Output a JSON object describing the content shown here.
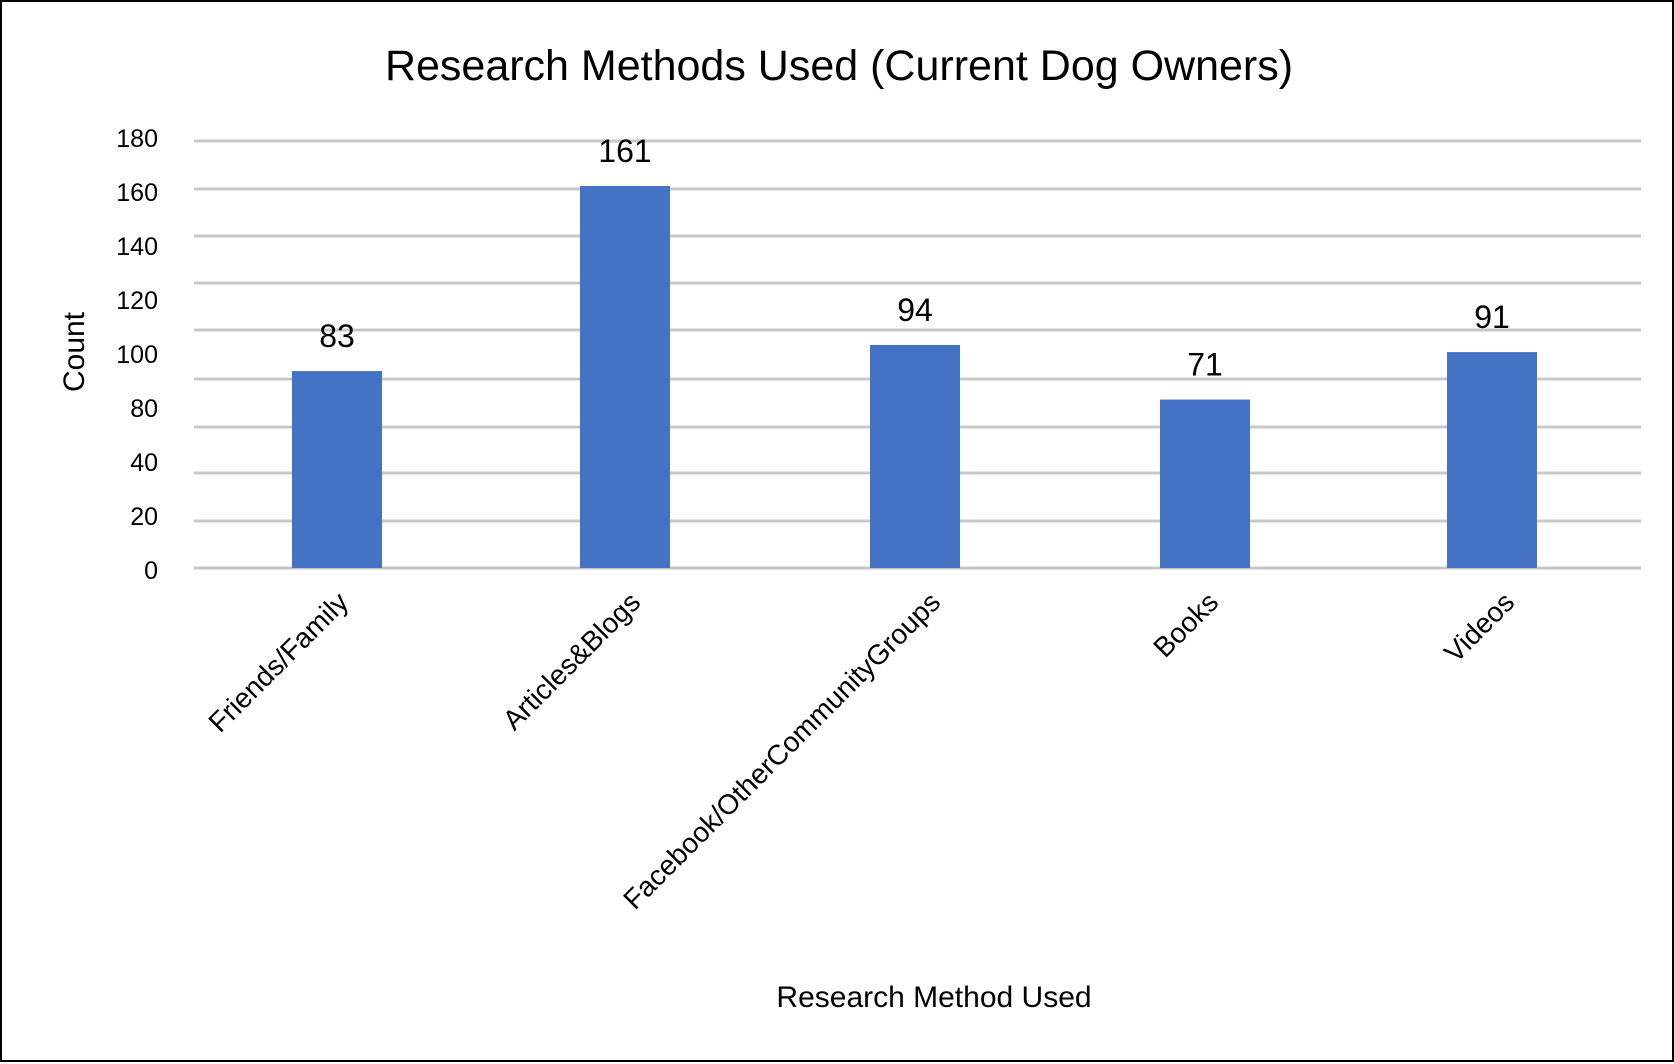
{
  "chart_data": {
    "type": "bar",
    "title": "Research Methods Used (Current Dog Owners)",
    "xlabel": "Research Method Used",
    "ylabel": "Count",
    "categories": [
      "Friends/Family",
      "Articles&Blogs",
      "Facebook/OtherCommunityGroups",
      "Books",
      "Videos"
    ],
    "values": [
      83,
      161,
      94,
      71,
      91
    ],
    "y_tick_labels": [
      "0",
      "20",
      "40",
      "80",
      "100",
      "120",
      "140",
      "160",
      "180"
    ],
    "grid": true,
    "legend": "none",
    "bar_color": "#4472c4"
  }
}
